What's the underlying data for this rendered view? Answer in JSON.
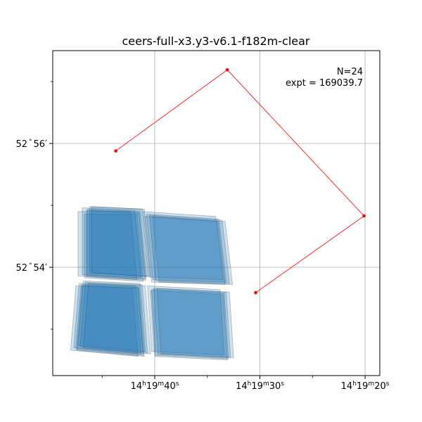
{
  "chart_data": {
    "type": "scatter",
    "title": "ceers-full-x3.y3-v6.1-f182m-clear",
    "annotation": [
      "N=24",
      "expt = 169039.7"
    ],
    "annotation_position": "top-right",
    "grid": true,
    "x_ticks": [
      {
        "value": 40,
        "label_h": "14",
        "label_m": "19",
        "label_s": "40"
      },
      {
        "value": 30,
        "label_h": "14",
        "label_m": "19",
        "label_s": "30"
      },
      {
        "value": 20,
        "label_h": "14",
        "label_m": "19",
        "label_s": "20"
      }
    ],
    "y_ticks": [
      {
        "value": 56,
        "label_deg": "52",
        "label_min": "56"
      },
      {
        "value": 54,
        "label_deg": "52",
        "label_min": "54"
      }
    ],
    "xlim": [
      49.7,
      18.6
    ],
    "ylim": [
      52.25,
      57.5
    ],
    "outline": {
      "color": "#ff0000",
      "points": [
        {
          "x": 43.7,
          "y": 55.88
        },
        {
          "x": 33.1,
          "y": 57.19
        },
        {
          "x": 20.1,
          "y": 54.83
        },
        {
          "x": 30.4,
          "y": 53.59
        }
      ]
    },
    "footprint_color": "#1f77b4",
    "footprints": [
      [
        {
          "x": 46.7,
          "y": 54.86
        },
        {
          "x": 41.7,
          "y": 54.86
        },
        {
          "x": 41.1,
          "y": 53.77
        },
        {
          "x": 46.7,
          "y": 53.83
        }
      ],
      [
        {
          "x": 46.4,
          "y": 54.94
        },
        {
          "x": 41.4,
          "y": 54.9
        },
        {
          "x": 40.8,
          "y": 53.81
        },
        {
          "x": 46.4,
          "y": 53.87
        }
      ],
      [
        {
          "x": 46.2,
          "y": 54.98
        },
        {
          "x": 41.2,
          "y": 54.94
        },
        {
          "x": 40.6,
          "y": 53.85
        },
        {
          "x": 46.2,
          "y": 53.91
        }
      ],
      [
        {
          "x": 47.3,
          "y": 54.9
        },
        {
          "x": 42.3,
          "y": 54.9
        },
        {
          "x": 41.7,
          "y": 53.8
        },
        {
          "x": 47.3,
          "y": 53.86
        }
      ],
      [
        {
          "x": 46.9,
          "y": 54.96
        },
        {
          "x": 41.9,
          "y": 54.92
        },
        {
          "x": 41.3,
          "y": 53.83
        },
        {
          "x": 46.9,
          "y": 53.88
        }
      ],
      [
        {
          "x": 46.0,
          "y": 54.98
        },
        {
          "x": 41.0,
          "y": 54.94
        },
        {
          "x": 40.4,
          "y": 53.85
        },
        {
          "x": 46.0,
          "y": 53.91
        }
      ],
      [
        {
          "x": 40.2,
          "y": 54.82
        },
        {
          "x": 33.3,
          "y": 54.74
        },
        {
          "x": 32.6,
          "y": 53.72
        },
        {
          "x": 39.6,
          "y": 53.76
        }
      ],
      [
        {
          "x": 40.8,
          "y": 54.86
        },
        {
          "x": 33.9,
          "y": 54.78
        },
        {
          "x": 33.2,
          "y": 53.76
        },
        {
          "x": 40.2,
          "y": 53.8
        }
      ],
      [
        {
          "x": 41.1,
          "y": 54.9
        },
        {
          "x": 34.2,
          "y": 54.82
        },
        {
          "x": 33.5,
          "y": 53.8
        },
        {
          "x": 40.5,
          "y": 53.84
        }
      ],
      [
        {
          "x": 40.9,
          "y": 54.82
        },
        {
          "x": 34.0,
          "y": 54.74
        },
        {
          "x": 33.3,
          "y": 53.72
        },
        {
          "x": 40.3,
          "y": 53.76
        }
      ],
      [
        {
          "x": 47.5,
          "y": 53.7
        },
        {
          "x": 42.1,
          "y": 53.66
        },
        {
          "x": 41.6,
          "y": 52.56
        },
        {
          "x": 48.0,
          "y": 52.66
        }
      ],
      [
        {
          "x": 47.2,
          "y": 53.74
        },
        {
          "x": 41.8,
          "y": 53.7
        },
        {
          "x": 41.3,
          "y": 52.6
        },
        {
          "x": 47.7,
          "y": 52.7
        }
      ],
      [
        {
          "x": 46.8,
          "y": 53.78
        },
        {
          "x": 41.4,
          "y": 53.74
        },
        {
          "x": 40.9,
          "y": 52.64
        },
        {
          "x": 47.3,
          "y": 52.74
        }
      ],
      [
        {
          "x": 46.6,
          "y": 53.76
        },
        {
          "x": 41.2,
          "y": 53.72
        },
        {
          "x": 40.7,
          "y": 52.62
        },
        {
          "x": 47.1,
          "y": 52.72
        }
      ],
      [
        {
          "x": 46.9,
          "y": 53.7
        },
        {
          "x": 41.5,
          "y": 53.66
        },
        {
          "x": 41.0,
          "y": 52.56
        },
        {
          "x": 47.4,
          "y": 52.66
        }
      ],
      [
        {
          "x": 46.3,
          "y": 53.74
        },
        {
          "x": 40.9,
          "y": 53.7
        },
        {
          "x": 40.4,
          "y": 52.6
        },
        {
          "x": 46.8,
          "y": 52.7
        }
      ],
      [
        {
          "x": 40.4,
          "y": 53.62
        },
        {
          "x": 33.5,
          "y": 53.56
        },
        {
          "x": 33.1,
          "y": 52.5
        },
        {
          "x": 40.0,
          "y": 52.56
        }
      ],
      [
        {
          "x": 40.1,
          "y": 53.66
        },
        {
          "x": 33.2,
          "y": 53.6
        },
        {
          "x": 32.8,
          "y": 52.54
        },
        {
          "x": 39.7,
          "y": 52.6
        }
      ],
      [
        {
          "x": 40.7,
          "y": 53.7
        },
        {
          "x": 33.8,
          "y": 53.64
        },
        {
          "x": 33.4,
          "y": 52.58
        },
        {
          "x": 40.3,
          "y": 52.64
        }
      ],
      [
        {
          "x": 39.8,
          "y": 53.66
        },
        {
          "x": 32.9,
          "y": 53.6
        },
        {
          "x": 32.5,
          "y": 52.54
        },
        {
          "x": 39.4,
          "y": 52.6
        }
      ],
      [
        {
          "x": 46.5,
          "y": 54.92
        },
        {
          "x": 41.5,
          "y": 54.88
        },
        {
          "x": 40.9,
          "y": 53.79
        },
        {
          "x": 46.5,
          "y": 53.85
        }
      ],
      [
        {
          "x": 40.5,
          "y": 54.84
        },
        {
          "x": 33.6,
          "y": 54.76
        },
        {
          "x": 32.9,
          "y": 53.74
        },
        {
          "x": 39.9,
          "y": 53.78
        }
      ],
      [
        {
          "x": 47.0,
          "y": 53.72
        },
        {
          "x": 41.6,
          "y": 53.68
        },
        {
          "x": 41.1,
          "y": 52.58
        },
        {
          "x": 47.5,
          "y": 52.68
        }
      ],
      [
        {
          "x": 40.3,
          "y": 53.64
        },
        {
          "x": 33.4,
          "y": 53.58
        },
        {
          "x": 33.0,
          "y": 52.52
        },
        {
          "x": 39.9,
          "y": 52.58
        }
      ]
    ]
  }
}
